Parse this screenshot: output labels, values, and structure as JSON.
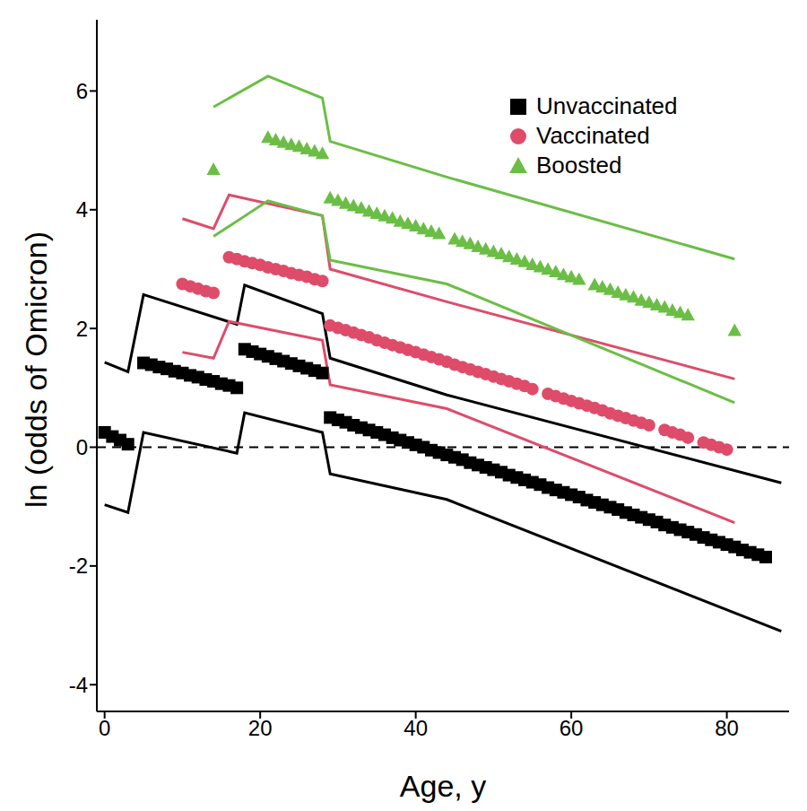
{
  "chart_data": {
    "type": "scatter",
    "x_label": "Age, y",
    "y_label": "ln (odds of Omicron)",
    "xlim": [
      -1,
      88
    ],
    "xticks": [
      0,
      20,
      40,
      60,
      80
    ],
    "ylim": [
      -4.45,
      7.2
    ],
    "yticks": [
      -4,
      -2,
      0,
      2,
      4,
      6
    ],
    "hline": 0,
    "legend": "upper right",
    "grid": false,
    "series": [
      {
        "name": "Unvaccinated",
        "color": "#000000",
        "marker": "square",
        "x": [
          0,
          1,
          2,
          3,
          5,
          6,
          7,
          8,
          9,
          10,
          11,
          12,
          13,
          14,
          15,
          16,
          17,
          18,
          19,
          20,
          21,
          22,
          23,
          24,
          25,
          26,
          27,
          28,
          29,
          30,
          31,
          32,
          33,
          34,
          35,
          36,
          37,
          38,
          39,
          40,
          41,
          42,
          43,
          44,
          45,
          46,
          47,
          48,
          49,
          50,
          51,
          52,
          53,
          54,
          55,
          56,
          57,
          58,
          59,
          60,
          61,
          62,
          63,
          64,
          65,
          66,
          67,
          68,
          69,
          70,
          71,
          72,
          73,
          74,
          75,
          76,
          77,
          78,
          79,
          80,
          81,
          82,
          83,
          84,
          85
        ],
        "values": [
          0.25,
          0.18,
          0.12,
          0.05,
          1.42,
          1.39,
          1.35,
          1.32,
          1.28,
          1.25,
          1.21,
          1.18,
          1.14,
          1.11,
          1.07,
          1.04,
          1.0,
          1.65,
          1.61,
          1.57,
          1.53,
          1.49,
          1.45,
          1.41,
          1.37,
          1.33,
          1.29,
          1.25,
          0.5,
          0.46,
          0.42,
          0.37,
          0.33,
          0.29,
          0.25,
          0.21,
          0.16,
          0.12,
          0.08,
          0.04,
          0.0,
          -0.05,
          -0.09,
          -0.13,
          -0.17,
          -0.21,
          -0.26,
          -0.3,
          -0.34,
          -0.38,
          -0.42,
          -0.47,
          -0.51,
          -0.55,
          -0.59,
          -0.63,
          -0.68,
          -0.72,
          -0.76,
          -0.8,
          -0.84,
          -0.89,
          -0.93,
          -0.97,
          -1.01,
          -1.05,
          -1.1,
          -1.14,
          -1.18,
          -1.22,
          -1.26,
          -1.31,
          -1.35,
          -1.39,
          -1.43,
          -1.47,
          -1.52,
          -1.56,
          -1.6,
          -1.64,
          -1.68,
          -1.73,
          -1.77,
          -1.81,
          -1.85
        ],
        "ci": {
          "x": [
            0,
            3,
            5,
            17,
            18,
            28,
            29,
            44,
            87
          ],
          "upper": [
            1.43,
            1.27,
            2.57,
            2.07,
            2.73,
            2.25,
            1.5,
            0.88,
            -0.6
          ],
          "lower": [
            -0.97,
            -1.1,
            0.25,
            -0.1,
            0.58,
            0.25,
            -0.45,
            -0.88,
            -3.1
          ]
        }
      },
      {
        "name": "Vaccinated",
        "color": "#de4c6a",
        "marker": "circle",
        "x": [
          10,
          11,
          12,
          13,
          14,
          16,
          17,
          18,
          19,
          20,
          21,
          22,
          23,
          24,
          25,
          26,
          27,
          28,
          29,
          30,
          31,
          32,
          33,
          34,
          35,
          36,
          37,
          38,
          39,
          40,
          41,
          42,
          43,
          44,
          45,
          46,
          47,
          48,
          49,
          50,
          51,
          52,
          53,
          54,
          55,
          57,
          58,
          59,
          60,
          61,
          62,
          63,
          64,
          65,
          66,
          67,
          68,
          69,
          70,
          72,
          73,
          74,
          75,
          77,
          78,
          79,
          80
        ],
        "values": [
          2.75,
          2.71,
          2.67,
          2.63,
          2.6,
          3.2,
          3.17,
          3.13,
          3.1,
          3.07,
          3.03,
          3.0,
          2.97,
          2.93,
          2.9,
          2.87,
          2.83,
          2.8,
          2.05,
          2.01,
          1.97,
          1.93,
          1.89,
          1.85,
          1.8,
          1.76,
          1.72,
          1.68,
          1.64,
          1.6,
          1.56,
          1.52,
          1.48,
          1.44,
          1.39,
          1.35,
          1.31,
          1.27,
          1.23,
          1.19,
          1.15,
          1.11,
          1.07,
          1.03,
          0.98,
          0.9,
          0.86,
          0.82,
          0.78,
          0.74,
          0.7,
          0.66,
          0.62,
          0.57,
          0.53,
          0.49,
          0.45,
          0.41,
          0.37,
          0.29,
          0.25,
          0.21,
          0.16,
          0.08,
          0.04,
          0.0,
          -0.04
        ],
        "ci": {
          "x": [
            10,
            14,
            16,
            28,
            29,
            44,
            81
          ],
          "upper": [
            3.85,
            3.68,
            4.25,
            3.9,
            3.0,
            2.45,
            1.15
          ],
          "lower": [
            1.6,
            1.5,
            2.12,
            1.8,
            1.05,
            0.65,
            -1.27
          ]
        }
      },
      {
        "name": "Boosted",
        "color": "#6bbe45",
        "marker": "triangle",
        "x": [
          14,
          21,
          22,
          23,
          24,
          25,
          26,
          27,
          28,
          29,
          30,
          31,
          32,
          33,
          34,
          35,
          36,
          37,
          38,
          39,
          40,
          41,
          42,
          43,
          45,
          46,
          47,
          48,
          49,
          50,
          51,
          52,
          53,
          54,
          55,
          56,
          57,
          58,
          59,
          60,
          61,
          63,
          64,
          65,
          66,
          67,
          68,
          69,
          70,
          71,
          72,
          73,
          74,
          75,
          81
        ],
        "values": [
          4.68,
          5.22,
          5.18,
          5.14,
          5.1,
          5.07,
          5.03,
          4.99,
          4.95,
          4.2,
          4.16,
          4.11,
          4.07,
          4.03,
          3.98,
          3.94,
          3.9,
          3.86,
          3.81,
          3.77,
          3.73,
          3.68,
          3.64,
          3.6,
          3.51,
          3.47,
          3.43,
          3.38,
          3.34,
          3.3,
          3.26,
          3.21,
          3.17,
          3.13,
          3.08,
          3.04,
          3.0,
          2.96,
          2.91,
          2.87,
          2.83,
          2.74,
          2.7,
          2.66,
          2.61,
          2.57,
          2.53,
          2.48,
          2.44,
          2.4,
          2.36,
          2.31,
          2.27,
          2.23,
          1.97
        ],
        "ci": {
          "x": [
            14,
            21,
            28,
            29,
            44,
            81
          ],
          "upper": [
            5.73,
            6.25,
            5.88,
            5.15,
            4.55,
            3.17
          ],
          "lower": [
            3.55,
            4.15,
            3.9,
            3.15,
            2.75,
            0.75
          ]
        }
      }
    ]
  }
}
